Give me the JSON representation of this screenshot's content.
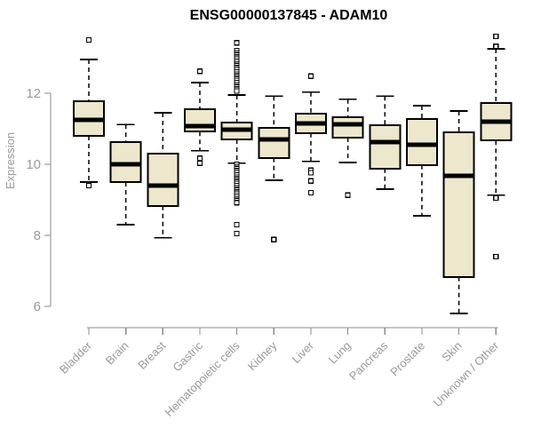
{
  "chart_data": {
    "type": "boxplot",
    "title": "ENSG00000137845 - ADAM10",
    "ylabel": "Expression",
    "xlabel": "",
    "yticks": [
      6,
      8,
      10,
      12
    ],
    "ylim": [
      5.6,
      13.8
    ],
    "grid": false,
    "legend": false,
    "colors": {
      "box_fill": "#EDE8CC",
      "box_border": "#000000",
      "median": "#000000",
      "whisker": "#000000",
      "outlier": "#000000",
      "axis": "#8A8A8A",
      "tick_label": "#9A9A9A",
      "title": "#000000",
      "background": "#FFFFFF"
    },
    "categories": [
      "Bladder",
      "Brain",
      "Breast",
      "Gastric",
      "Hematopoietic cells",
      "Kidney",
      "Liver",
      "Lung",
      "Pancreas",
      "Prostate",
      "Skin",
      "Unknown / Other"
    ],
    "boxes": [
      {
        "category": "Bladder",
        "low": 9.5,
        "q1": 10.8,
        "median": 11.25,
        "q3": 11.78,
        "high": 12.95,
        "outliers": [
          13.5,
          9.4
        ]
      },
      {
        "category": "Brain",
        "low": 8.3,
        "q1": 9.5,
        "median": 10.0,
        "q3": 10.62,
        "high": 11.12,
        "outliers": []
      },
      {
        "category": "Breast",
        "low": 7.93,
        "q1": 8.83,
        "median": 9.4,
        "q3": 10.3,
        "high": 11.45,
        "outliers": []
      },
      {
        "category": "Gastric",
        "low": 10.38,
        "q1": 10.92,
        "median": 11.07,
        "q3": 11.55,
        "high": 12.3,
        "outliers": [
          12.62,
          10.17,
          10.03
        ]
      },
      {
        "category": "Hematopoietic cells",
        "low": 10.03,
        "q1": 10.7,
        "median": 10.97,
        "q3": 11.18,
        "high": 11.95,
        "outliers": [
          13.42,
          13.2,
          13.14,
          13.08,
          13.02,
          12.96,
          12.9,
          12.84,
          12.78,
          12.72,
          12.66,
          12.6,
          12.54,
          12.48,
          12.42,
          12.36,
          12.3,
          12.24,
          12.18,
          12.12,
          12.06,
          10.0,
          9.94,
          9.88,
          9.82,
          9.76,
          9.7,
          9.64,
          9.58,
          9.52,
          9.46,
          9.4,
          9.34,
          9.28,
          9.22,
          9.16,
          9.1,
          9.04,
          8.98,
          8.92,
          8.3,
          8.05
        ]
      },
      {
        "category": "Kidney",
        "low": 9.55,
        "q1": 10.18,
        "median": 10.7,
        "q3": 11.02,
        "high": 11.92,
        "outliers": [
          7.88
        ]
      },
      {
        "category": "Liver",
        "low": 10.08,
        "q1": 10.88,
        "median": 11.15,
        "q3": 11.43,
        "high": 12.03,
        "outliers": [
          12.48,
          9.83,
          9.76,
          9.53,
          9.2
        ]
      },
      {
        "category": "Lung",
        "low": 10.05,
        "q1": 10.75,
        "median": 11.12,
        "q3": 11.33,
        "high": 11.83,
        "outliers": [
          9.13
        ]
      },
      {
        "category": "Pancreas",
        "low": 9.3,
        "q1": 9.88,
        "median": 10.62,
        "q3": 11.1,
        "high": 11.92,
        "outliers": []
      },
      {
        "category": "Prostate",
        "low": 8.55,
        "q1": 9.98,
        "median": 10.55,
        "q3": 11.28,
        "high": 11.65,
        "outliers": []
      },
      {
        "category": "Skin",
        "low": 5.8,
        "q1": 6.83,
        "median": 9.68,
        "q3": 10.9,
        "high": 11.5,
        "outliers": []
      },
      {
        "category": "Unknown / Other",
        "low": 9.13,
        "q1": 10.67,
        "median": 11.2,
        "q3": 11.72,
        "high": 13.25,
        "outliers": [
          13.6,
          13.32,
          9.05,
          7.4
        ]
      }
    ]
  }
}
